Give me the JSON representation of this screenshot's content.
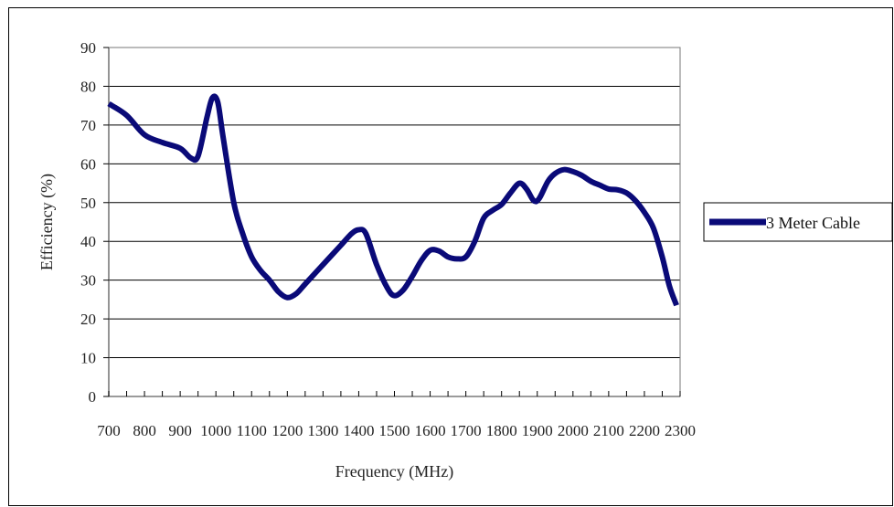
{
  "chart_data": {
    "type": "line",
    "xlabel": "Frequency (MHz)",
    "ylabel": "Efficiency (%)",
    "xlim": [
      700,
      2300
    ],
    "ylim": [
      0,
      90
    ],
    "x_ticks": [
      "700",
      "800",
      "900",
      "1000",
      "1100",
      "1200",
      "1300",
      "1400",
      "1500",
      "1600",
      "1700",
      "1800",
      "1900",
      "2000",
      "2100",
      "2200",
      "2300"
    ],
    "y_ticks": [
      "0",
      "10",
      "20",
      "30",
      "40",
      "50",
      "60",
      "70",
      "80",
      "90"
    ],
    "grid": "horizontal",
    "legend": "right",
    "series": [
      {
        "name": "3 Meter Cable",
        "color": "#0a0a78",
        "points": [
          [
            700,
            75.5
          ],
          [
            750,
            72.5
          ],
          [
            800,
            67.5
          ],
          [
            850,
            65.5
          ],
          [
            900,
            64
          ],
          [
            930,
            61.5
          ],
          [
            950,
            62
          ],
          [
            975,
            72
          ],
          [
            990,
            77
          ],
          [
            1005,
            76
          ],
          [
            1020,
            67
          ],
          [
            1050,
            50
          ],
          [
            1075,
            42
          ],
          [
            1100,
            36
          ],
          [
            1125,
            32.5
          ],
          [
            1150,
            30
          ],
          [
            1175,
            27
          ],
          [
            1200,
            25.5
          ],
          [
            1225,
            26.5
          ],
          [
            1250,
            29
          ],
          [
            1300,
            34
          ],
          [
            1350,
            39
          ],
          [
            1380,
            42
          ],
          [
            1400,
            43
          ],
          [
            1420,
            42
          ],
          [
            1450,
            34
          ],
          [
            1480,
            28
          ],
          [
            1500,
            26
          ],
          [
            1525,
            27.5
          ],
          [
            1550,
            31
          ],
          [
            1575,
            35
          ],
          [
            1600,
            37.7
          ],
          [
            1625,
            37.5
          ],
          [
            1650,
            36
          ],
          [
            1675,
            35.5
          ],
          [
            1700,
            36
          ],
          [
            1725,
            40
          ],
          [
            1750,
            46
          ],
          [
            1775,
            48
          ],
          [
            1800,
            49.5
          ],
          [
            1825,
            52.5
          ],
          [
            1850,
            55
          ],
          [
            1870,
            53.5
          ],
          [
            1890,
            50.5
          ],
          [
            1905,
            51
          ],
          [
            1930,
            55.5
          ],
          [
            1950,
            57.5
          ],
          [
            1975,
            58.5
          ],
          [
            2000,
            58
          ],
          [
            2025,
            57
          ],
          [
            2050,
            55.5
          ],
          [
            2075,
            54.5
          ],
          [
            2100,
            53.5
          ],
          [
            2125,
            53.3
          ],
          [
            2150,
            52.5
          ],
          [
            2175,
            50.5
          ],
          [
            2200,
            47.5
          ],
          [
            2225,
            43.5
          ],
          [
            2250,
            36
          ],
          [
            2270,
            28.5
          ],
          [
            2290,
            23.5
          ]
        ]
      }
    ]
  }
}
